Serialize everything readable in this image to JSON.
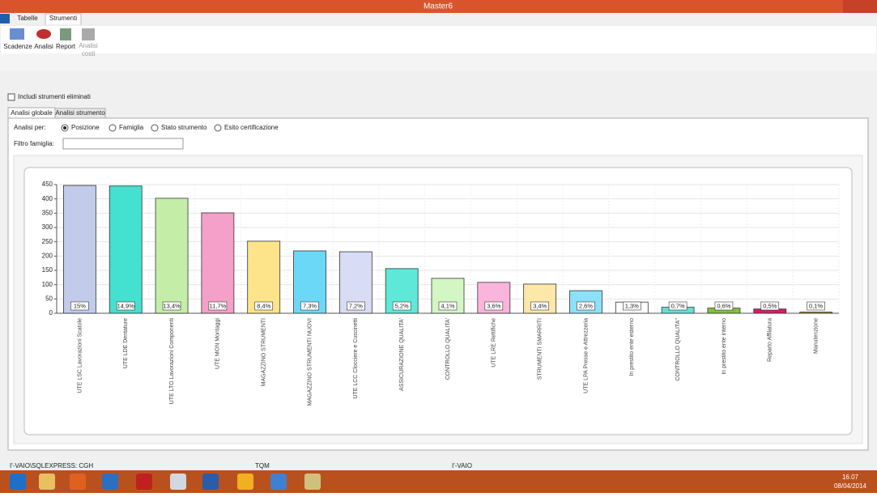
{
  "window": {
    "title": "Master6"
  },
  "ribbon": {
    "tabs": [
      "Tabelle",
      "Strumenti"
    ],
    "buttons": [
      "Scadenze",
      "Analisi",
      "Report",
      "Analisi costi"
    ]
  },
  "filters": {
    "include_deleted": "Includi strumenti eliminati",
    "tabs": [
      "Analisi globale",
      "Analisi strumento"
    ],
    "analysis_by": "Analisi per:",
    "options": [
      "Posizione",
      "Famiglia",
      "Stato strumento",
      "Esito certificazione"
    ],
    "family_filter": "Filtro famiglia:"
  },
  "chart_data": {
    "type": "bar",
    "categories": [
      "UTE LSC Lavorazioni Scatole",
      "UTE LDE Dentature",
      "UTE LTO Lavorazioni Componenti",
      "UTE MON Montaggi",
      "MAGAZZINO STRUMENTI",
      "MAGAZZINO STRUMENTI NUOVI",
      "UTE LCC Clocciere e Cuscinetti",
      "ASSICURAZIONE QUALITA'",
      "CONTROLLO QUALITA'",
      "UTE LRE Rettifiche",
      "STRUMENTI SMARRITI",
      "UTE LPA Presse e Attrezzeria",
      "In prestito ente esterno",
      "CONTROLLO QUALITA''",
      "In prestito ente interno",
      "Reparto Affilatura",
      "Manutenzione"
    ],
    "values": [
      447,
      445,
      402,
      351,
      252,
      218,
      215,
      156,
      122,
      108,
      102,
      79,
      39,
      21,
      18,
      15,
      4
    ],
    "percent_labels": [
      "15%",
      "14,9%",
      "13,4%",
      "11,7%",
      "8,4%",
      "7,3%",
      "7,2%",
      "5,2%",
      "4,1%",
      "3,6%",
      "3,4%",
      "2,6%",
      "1,3%",
      "0,7%",
      "0,6%",
      "0,5%",
      "0,1%"
    ],
    "colors": [
      "#c3cbea",
      "#44e0d0",
      "#c4eea8",
      "#f4a0c8",
      "#fde48a",
      "#6cd8f8",
      "#d8dcf4",
      "#5ee8d8",
      "#d4f6c4",
      "#fbb4dc",
      "#fde8a8",
      "#8ce0f8",
      "#ffffff",
      "#68dcd8",
      "#80c040",
      "#d81c68",
      "#b09030"
    ],
    "ylim": [
      0,
      450
    ],
    "yticks": [
      0,
      50,
      100,
      150,
      200,
      250,
      300,
      350,
      400,
      450
    ],
    "grid": true
  },
  "status": [
    "I'-VAIO\\SQLEXPRESS: CGH",
    "TQM",
    "I'-VAIO"
  ],
  "taskbar": {
    "time": "16.07",
    "date": "08/04/2014"
  }
}
